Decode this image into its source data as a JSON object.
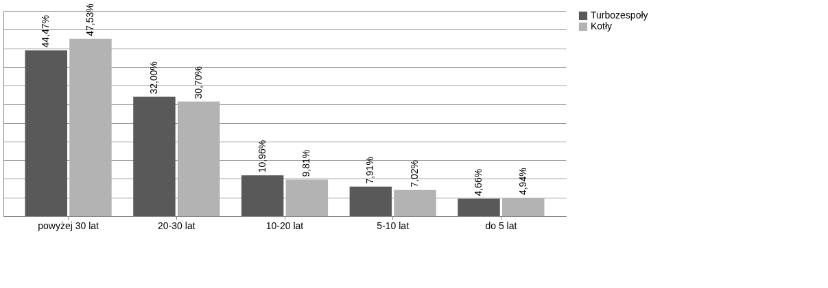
{
  "chart_data": {
    "type": "bar",
    "categories": [
      "powyżej 30 lat",
      "20-30 lat",
      "10-20 lat",
      "5-10 lat",
      "do 5 lat"
    ],
    "series": [
      {
        "name": "Turbozespoły",
        "color": "#595959",
        "values": [
          44.47,
          32.0,
          10.96,
          7.91,
          4.66
        ],
        "value_labels": [
          "44,47%",
          "32,00%",
          "10,96%",
          "7,91%",
          "4,66%"
        ]
      },
      {
        "name": "Kotły",
        "color": "#b3b3b3",
        "values": [
          47.53,
          30.7,
          9.81,
          7.02,
          4.94
        ],
        "value_labels": [
          "47,53%",
          "30,70%",
          "9,81%",
          "7,02%",
          "4,94%"
        ]
      }
    ],
    "ylim": [
      0,
      55
    ],
    "yticks": [
      {
        "value": 0,
        "label": null
      },
      {
        "value": 5,
        "label": null
      },
      {
        "value": 10,
        "label": null
      },
      {
        "value": 15,
        "label": null
      },
      {
        "value": 20,
        "label": null
      },
      {
        "value": 25,
        "label": null
      },
      {
        "value": 30,
        "label": null
      },
      {
        "value": 35,
        "label": null
      },
      {
        "value": 40,
        "label": null
      },
      {
        "value": 45,
        "label": null
      },
      {
        "value": 50,
        "label": null
      },
      {
        "value": 55,
        "label": null
      }
    ],
    "grid": "y",
    "legend": "right",
    "tick_labels": "x"
  }
}
